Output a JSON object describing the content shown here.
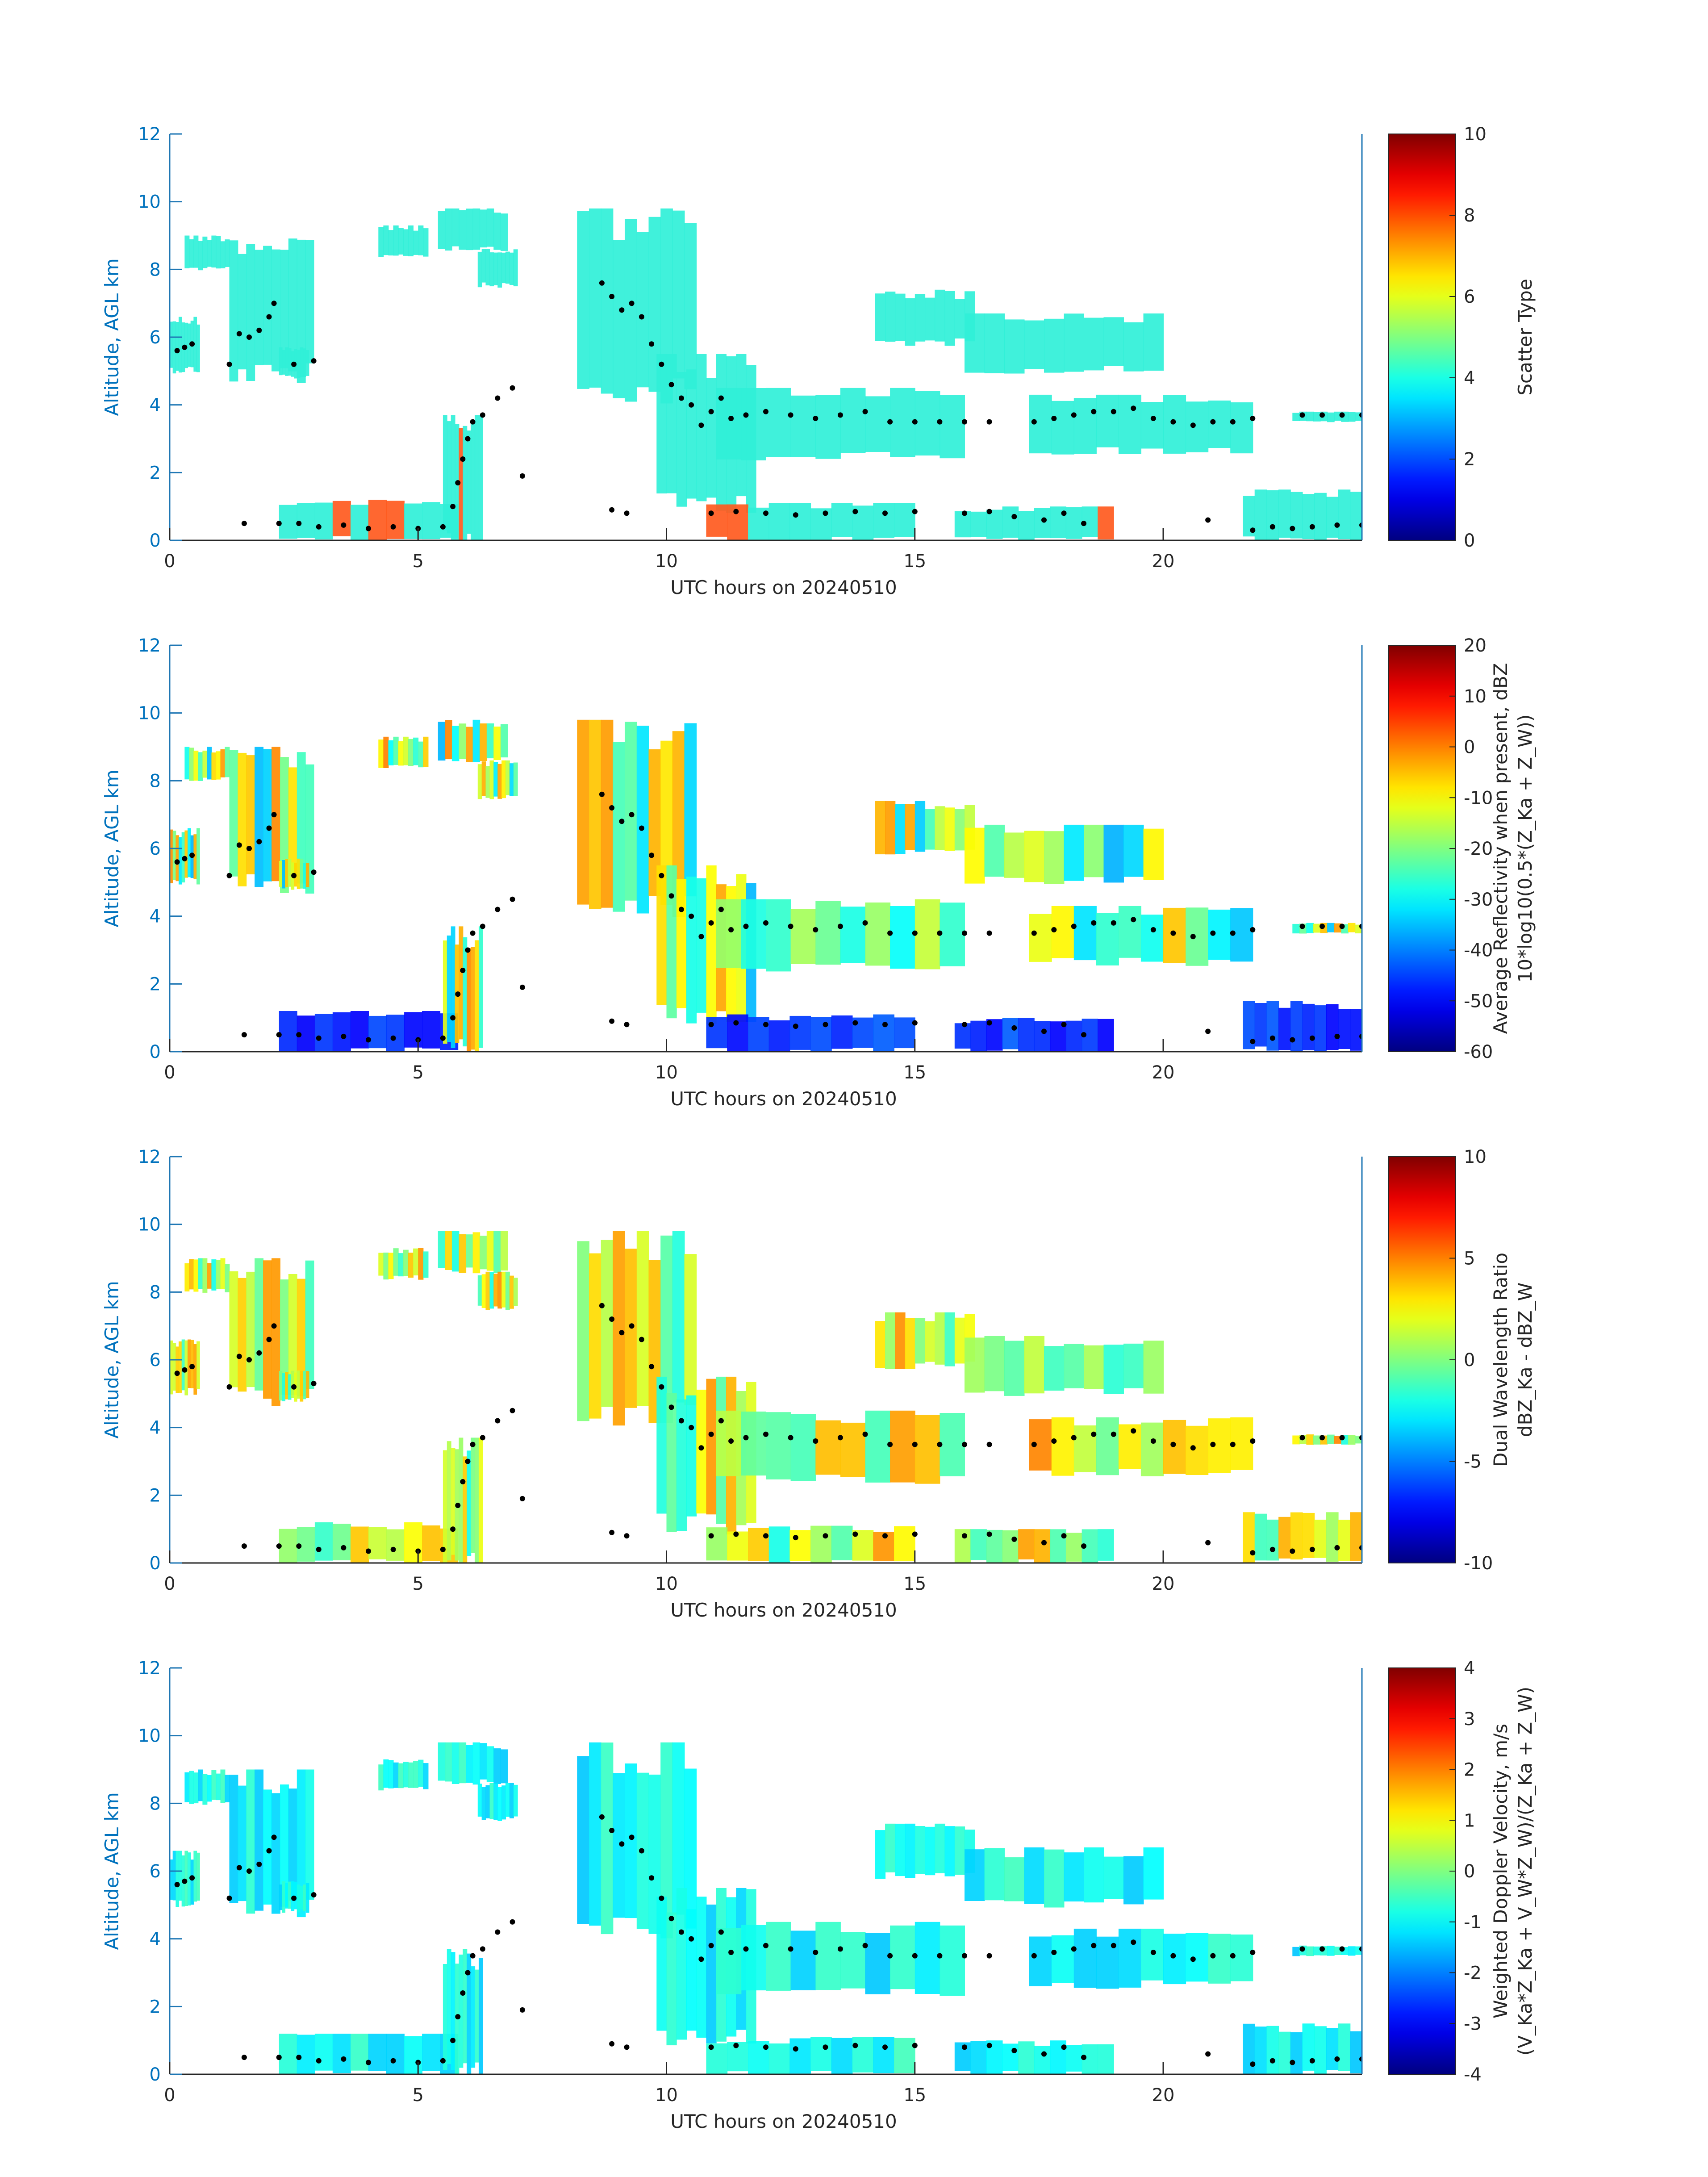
{
  "figure": {
    "panel_count": 4
  },
  "chart_data": [
    {
      "type": "heatmap",
      "panel": 1,
      "xlabel": "UTC hours on 20240510",
      "ylabel": "Altitude, AGL km",
      "xlim": [
        0,
        24
      ],
      "ylim": [
        0,
        12
      ],
      "xticks": [
        0,
        5,
        10,
        15,
        20
      ],
      "yticks": [
        0,
        2,
        4,
        6,
        8,
        10,
        12
      ],
      "colorbar": {
        "label_lines": [
          "Scatter Type"
        ],
        "range": [
          0,
          10
        ],
        "ticks": [
          0,
          2,
          4,
          6,
          8,
          10
        ],
        "colormap": "jet"
      },
      "dominant_color": "#30f0d8"
    },
    {
      "type": "heatmap",
      "panel": 2,
      "xlabel": "UTC hours on 20240510",
      "ylabel": "Altitude, AGL km",
      "xlim": [
        0,
        24
      ],
      "ylim": [
        0,
        12
      ],
      "xticks": [
        0,
        5,
        10,
        15,
        20
      ],
      "yticks": [
        0,
        2,
        4,
        6,
        8,
        10,
        12
      ],
      "colorbar": {
        "label_lines": [
          "Average Reflectivity when present, dBZ",
          "10*log10(0.5*(Z_Ka + Z_W))"
        ],
        "range": [
          -60,
          20
        ],
        "ticks": [
          -60,
          -50,
          -40,
          -30,
          -20,
          -10,
          0,
          10,
          20
        ],
        "colormap": "jet"
      }
    },
    {
      "type": "heatmap",
      "panel": 3,
      "xlabel": "UTC hours on 20240510",
      "ylabel": "Altitude, AGL km",
      "xlim": [
        0,
        24
      ],
      "ylim": [
        0,
        12
      ],
      "xticks": [
        0,
        5,
        10,
        15,
        20
      ],
      "yticks": [
        0,
        2,
        4,
        6,
        8,
        10,
        12
      ],
      "colorbar": {
        "label_lines": [
          "Dual Wavelength Ratio",
          "dBZ_Ka - dBZ_W"
        ],
        "range": [
          -10,
          10
        ],
        "ticks": [
          -10,
          -5,
          0,
          5,
          10
        ],
        "colormap": "jet"
      }
    },
    {
      "type": "heatmap",
      "panel": 4,
      "xlabel": "UTC hours on 20240510",
      "ylabel": "Altitude, AGL km",
      "xlim": [
        0,
        24
      ],
      "ylim": [
        0,
        12
      ],
      "xticks": [
        0,
        5,
        10,
        15,
        20
      ],
      "yticks": [
        0,
        2,
        4,
        6,
        8,
        10,
        12
      ],
      "colorbar": {
        "label_lines": [
          "Weighted Doppler Velocity, m/s",
          "(V_Ka*Z_Ka + V_W*Z_W)/(Z_Ka + Z_W)"
        ],
        "range": [
          -4,
          4
        ],
        "ticks": [
          -4,
          -3,
          -2,
          -1,
          0,
          1,
          2,
          3,
          4
        ],
        "colormap": "jet"
      }
    }
  ],
  "cloud_regions": [
    {
      "t": [
        0.0,
        0.6
      ],
      "z": [
        5.0,
        6.6
      ]
    },
    {
      "t": [
        0.3,
        1.2
      ],
      "z": [
        8.0,
        9.0
      ]
    },
    {
      "t": [
        1.2,
        2.9
      ],
      "z": [
        4.8,
        9.0
      ]
    },
    {
      "t": [
        2.2,
        2.8
      ],
      "z": [
        4.8,
        5.7
      ]
    },
    {
      "t": [
        4.2,
        5.2
      ],
      "z": [
        8.4,
        9.3
      ]
    },
    {
      "t": [
        5.4,
        6.8
      ],
      "z": [
        8.6,
        9.8
      ]
    },
    {
      "t": [
        6.2,
        7.0
      ],
      "z": [
        7.5,
        8.6
      ]
    },
    {
      "t": [
        8.2,
        10.6
      ],
      "z": [
        4.2,
        9.8
      ]
    },
    {
      "t": [
        9.8,
        11.8
      ],
      "z": [
        1.0,
        5.5
      ]
    },
    {
      "t": [
        11.0,
        16.0
      ],
      "z": [
        2.4,
        4.5
      ]
    },
    {
      "t": [
        14.2,
        16.2
      ],
      "z": [
        5.8,
        7.4
      ]
    },
    {
      "t": [
        16.0,
        20.0
      ],
      "z": [
        5.0,
        6.7
      ]
    },
    {
      "t": [
        17.3,
        21.8
      ],
      "z": [
        2.6,
        4.3
      ]
    },
    {
      "t": [
        22.6,
        24.0
      ],
      "z": [
        3.5,
        3.8
      ]
    },
    {
      "t": [
        2.2,
        5.8
      ],
      "z": [
        0.0,
        1.2
      ]
    },
    {
      "t": [
        5.5,
        6.3
      ],
      "z": [
        0.0,
        3.7
      ]
    },
    {
      "t": [
        10.8,
        15.0
      ],
      "z": [
        0.0,
        1.1
      ]
    },
    {
      "t": [
        15.8,
        19.0
      ],
      "z": [
        0.0,
        1.0
      ]
    },
    {
      "t": [
        21.6,
        24.0
      ],
      "z": [
        0.0,
        1.5
      ]
    }
  ],
  "layer_markers": [
    {
      "t": 0.15,
      "z": 5.6
    },
    {
      "t": 0.3,
      "z": 5.7
    },
    {
      "t": 0.45,
      "z": 5.8
    },
    {
      "t": 1.2,
      "z": 5.2
    },
    {
      "t": 1.4,
      "z": 6.1
    },
    {
      "t": 1.6,
      "z": 6.0
    },
    {
      "t": 1.8,
      "z": 6.2
    },
    {
      "t": 2.0,
      "z": 6.6
    },
    {
      "t": 2.1,
      "z": 7.0
    },
    {
      "t": 2.5,
      "z": 5.2
    },
    {
      "t": 2.9,
      "z": 5.3
    },
    {
      "t": 2.2,
      "z": 0.5
    },
    {
      "t": 2.6,
      "z": 0.5
    },
    {
      "t": 3.0,
      "z": 0.4
    },
    {
      "t": 3.5,
      "z": 0.45
    },
    {
      "t": 4.0,
      "z": 0.35
    },
    {
      "t": 4.5,
      "z": 0.4
    },
    {
      "t": 5.0,
      "z": 0.35
    },
    {
      "t": 5.5,
      "z": 0.4
    },
    {
      "t": 5.7,
      "z": 1.0
    },
    {
      "t": 5.8,
      "z": 1.7
    },
    {
      "t": 5.9,
      "z": 2.4
    },
    {
      "t": 6.0,
      "z": 3.0
    },
    {
      "t": 6.1,
      "z": 3.5
    },
    {
      "t": 6.3,
      "z": 3.7
    },
    {
      "t": 6.6,
      "z": 4.2
    },
    {
      "t": 6.9,
      "z": 4.5
    },
    {
      "t": 7.1,
      "z": 1.9
    },
    {
      "t": 8.7,
      "z": 7.6
    },
    {
      "t": 8.9,
      "z": 7.2
    },
    {
      "t": 9.1,
      "z": 6.8
    },
    {
      "t": 9.3,
      "z": 7.0
    },
    {
      "t": 9.5,
      "z": 6.6
    },
    {
      "t": 9.7,
      "z": 5.8
    },
    {
      "t": 9.9,
      "z": 5.2
    },
    {
      "t": 10.1,
      "z": 4.6
    },
    {
      "t": 10.3,
      "z": 4.2
    },
    {
      "t": 10.5,
      "z": 4.0
    },
    {
      "t": 10.7,
      "z": 3.4
    },
    {
      "t": 10.9,
      "z": 3.8
    },
    {
      "t": 11.1,
      "z": 4.2
    },
    {
      "t": 11.3,
      "z": 3.6
    },
    {
      "t": 11.6,
      "z": 3.7
    },
    {
      "t": 12.0,
      "z": 3.8
    },
    {
      "t": 12.5,
      "z": 3.7
    },
    {
      "t": 13.0,
      "z": 3.6
    },
    {
      "t": 13.5,
      "z": 3.7
    },
    {
      "t": 14.0,
      "z": 3.8
    },
    {
      "t": 14.5,
      "z": 3.5
    },
    {
      "t": 15.0,
      "z": 3.5
    },
    {
      "t": 15.5,
      "z": 3.5
    },
    {
      "t": 16.0,
      "z": 3.5
    },
    {
      "t": 16.5,
      "z": 3.5
    },
    {
      "t": 17.4,
      "z": 3.5
    },
    {
      "t": 17.8,
      "z": 3.6
    },
    {
      "t": 18.2,
      "z": 3.7
    },
    {
      "t": 18.6,
      "z": 3.8
    },
    {
      "t": 19.0,
      "z": 3.8
    },
    {
      "t": 19.4,
      "z": 3.9
    },
    {
      "t": 19.8,
      "z": 3.6
    },
    {
      "t": 20.2,
      "z": 3.5
    },
    {
      "t": 20.6,
      "z": 3.4
    },
    {
      "t": 21.0,
      "z": 3.5
    },
    {
      "t": 21.4,
      "z": 3.5
    },
    {
      "t": 21.8,
      "z": 3.6
    },
    {
      "t": 22.8,
      "z": 3.7
    },
    {
      "t": 23.2,
      "z": 3.7
    },
    {
      "t": 23.6,
      "z": 3.7
    },
    {
      "t": 24.0,
      "z": 3.7
    },
    {
      "t": 10.9,
      "z": 0.8
    },
    {
      "t": 11.4,
      "z": 0.85
    },
    {
      "t": 12.0,
      "z": 0.8
    },
    {
      "t": 12.6,
      "z": 0.75
    },
    {
      "t": 13.2,
      "z": 0.8
    },
    {
      "t": 13.8,
      "z": 0.85
    },
    {
      "t": 14.4,
      "z": 0.8
    },
    {
      "t": 15.0,
      "z": 0.85
    },
    {
      "t": 16.0,
      "z": 0.8
    },
    {
      "t": 16.5,
      "z": 0.85
    },
    {
      "t": 17.0,
      "z": 0.7
    },
    {
      "t": 17.6,
      "z": 0.6
    },
    {
      "t": 18.0,
      "z": 0.8
    },
    {
      "t": 18.4,
      "z": 0.5
    },
    {
      "t": 20.9,
      "z": 0.6
    },
    {
      "t": 21.8,
      "z": 0.3
    },
    {
      "t": 22.2,
      "z": 0.4
    },
    {
      "t": 22.6,
      "z": 0.35
    },
    {
      "t": 23.0,
      "z": 0.4
    },
    {
      "t": 23.5,
      "z": 0.45
    },
    {
      "t": 24.0,
      "z": 0.45
    },
    {
      "t": 9.2,
      "z": 0.8
    },
    {
      "t": 8.9,
      "z": 0.9
    },
    {
      "t": 1.5,
      "z": 0.5
    }
  ]
}
